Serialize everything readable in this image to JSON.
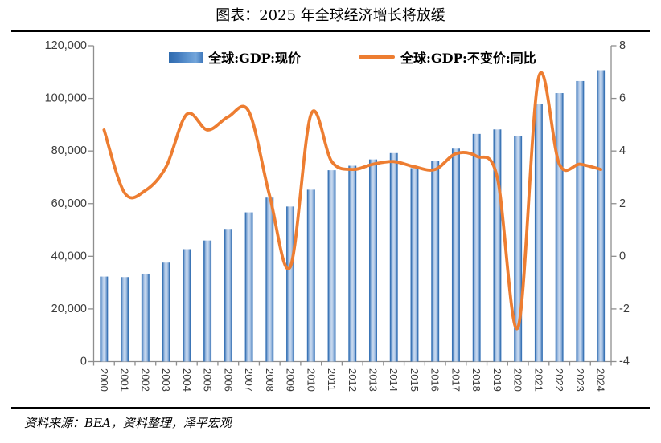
{
  "title": "图表：2025 年全球经济增长将放缓",
  "source_note": "资料来源：BEA，资料整理，泽平宏观",
  "colors": {
    "bar_main": "#4f86c6",
    "bar_dark": "#2f6bae",
    "bar_light": "#c9daef",
    "line": "#ED7D31",
    "axis": "#8e8e8e",
    "tick_text": "#3b3b3b",
    "rule": "#000000"
  },
  "legend": [
    {
      "label": "全球:GDP:现价",
      "type": "bar"
    },
    {
      "label": "全球:GDP:不变价:同比",
      "type": "line"
    }
  ],
  "chart_data": {
    "type": "combo-bar-line",
    "categories": [
      "2000",
      "2001",
      "2002",
      "2003",
      "2004",
      "2005",
      "2006",
      "2007",
      "2008",
      "2009",
      "2010",
      "2011",
      "2012",
      "2013",
      "2014",
      "2015",
      "2016",
      "2017",
      "2018",
      "2019",
      "2020",
      "2021",
      "2022",
      "2023",
      "2024"
    ],
    "series": [
      {
        "name": "全球:GDP:现价",
        "type": "bar",
        "axis": "left",
        "values": [
          32300,
          32100,
          33400,
          37600,
          42700,
          46000,
          50400,
          56700,
          62300,
          58900,
          65300,
          72700,
          74400,
          76800,
          79200,
          73500,
          76300,
          80900,
          86500,
          88200,
          85700,
          97800,
          102000,
          106600,
          110700
        ]
      },
      {
        "name": "全球:GDP:不变价:同比",
        "type": "line",
        "axis": "right",
        "values": [
          4.8,
          2.4,
          2.5,
          3.4,
          5.4,
          4.8,
          5.3,
          5.5,
          2.3,
          -0.4,
          5.4,
          3.6,
          3.3,
          3.5,
          3.6,
          3.4,
          3.3,
          3.9,
          3.8,
          3.0,
          -2.7,
          6.8,
          3.5,
          3.5,
          3.3
        ]
      }
    ],
    "left_axis": {
      "min": 0,
      "max": 120000,
      "tick_labels": [
        "120,000",
        "100,000",
        "80,000",
        "60,000",
        "40,000",
        "20,000",
        "0"
      ]
    },
    "right_axis": {
      "min": -4,
      "max": 8,
      "tick_labels": [
        "8",
        "6",
        "4",
        "2",
        "0",
        "-2",
        "-4"
      ]
    },
    "grid": false,
    "legend_position": "top",
    "x_label_rotation": 90
  }
}
